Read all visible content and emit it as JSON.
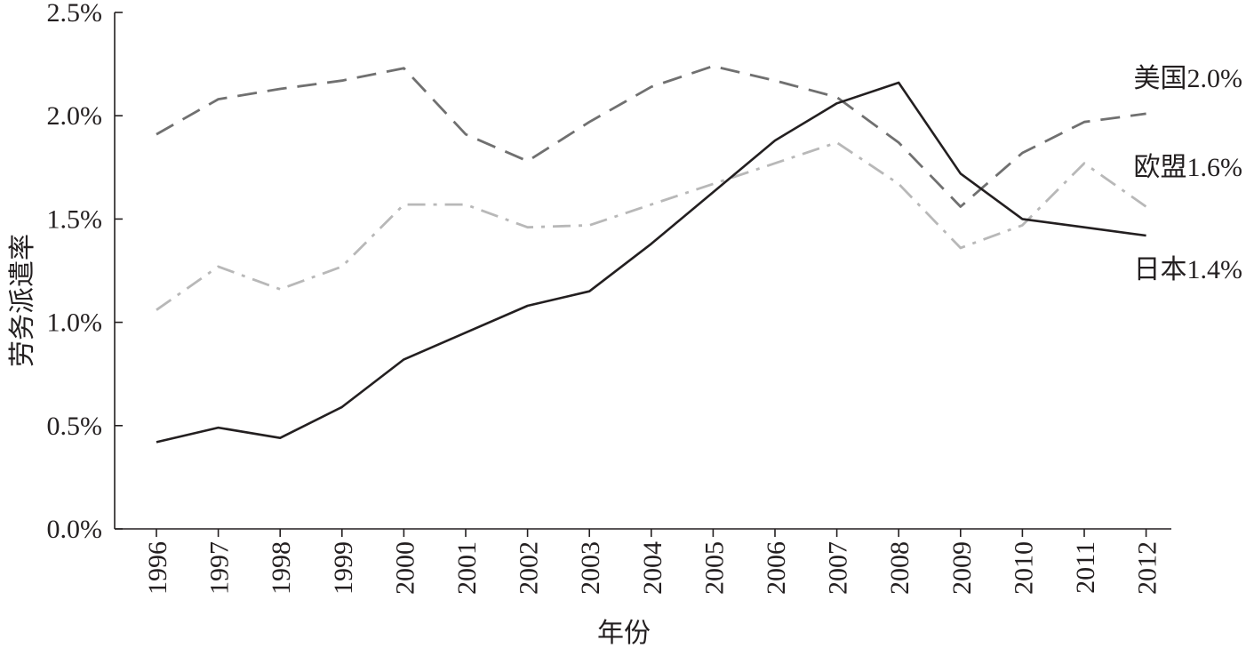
{
  "chart_data": {
    "type": "line",
    "xlabel": "年份",
    "ylabel": "劳务派遣率",
    "categories": [
      "1996",
      "1997",
      "1998",
      "1999",
      "2000",
      "2001",
      "2002",
      "2003",
      "2004",
      "2005",
      "2006",
      "2007",
      "2008",
      "2009",
      "2010",
      "2011",
      "2012"
    ],
    "yticks": [
      "0.0%",
      "0.5%",
      "1.0%",
      "1.5%",
      "2.0%",
      "2.5%"
    ],
    "ylim": [
      0,
      2.5
    ],
    "y_unit": "%",
    "grid": false,
    "legend": "none (series labeled directly at right end)",
    "series": [
      {
        "name": "美国",
        "end_label": "美国2.0%",
        "style": "dashed",
        "color": "#707070",
        "values": [
          1.91,
          2.08,
          2.13,
          2.17,
          2.23,
          1.91,
          1.78,
          1.97,
          2.14,
          2.24,
          2.17,
          2.09,
          1.87,
          1.56,
          1.82,
          1.97,
          2.01
        ]
      },
      {
        "name": "欧盟",
        "end_label": "欧盟1.6%",
        "style": "dash-dot",
        "color": "#b8b8b8",
        "values": [
          1.06,
          1.27,
          1.16,
          1.27,
          1.57,
          1.57,
          1.46,
          1.47,
          1.57,
          1.67,
          1.77,
          1.87,
          1.67,
          1.36,
          1.47,
          1.77,
          1.56
        ]
      },
      {
        "name": "日本",
        "end_label": "日本1.4%",
        "style": "solid",
        "color": "#231f20",
        "values": [
          0.42,
          0.49,
          0.44,
          0.59,
          0.82,
          0.95,
          1.08,
          1.15,
          1.38,
          1.63,
          1.88,
          2.06,
          2.16,
          1.72,
          1.5,
          1.46,
          1.42
        ]
      }
    ]
  }
}
